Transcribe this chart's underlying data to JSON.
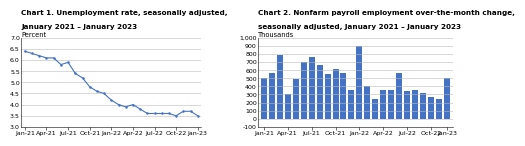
{
  "chart1_title_line1": "Chart 1. Unemployment rate, seasonally adjusted,",
  "chart1_title_line2": "January 2021 – January 2023",
  "chart1_unit": "Percent",
  "chart1_ylim": [
    3.0,
    7.0
  ],
  "chart1_yticks": [
    3.0,
    3.5,
    4.0,
    4.5,
    5.0,
    5.5,
    6.0,
    6.5,
    7.0
  ],
  "chart1_data": [
    6.4,
    6.3,
    6.2,
    6.1,
    6.1,
    5.8,
    5.9,
    5.4,
    5.2,
    4.8,
    4.6,
    4.5,
    4.2,
    4.0,
    3.9,
    4.0,
    3.8,
    3.6,
    3.6,
    3.6,
    3.6,
    3.5,
    3.7,
    3.7,
    3.5
  ],
  "chart1_line_color": "#4472C4",
  "chart2_title_line1": "Chart 2. Nonfarm payroll employment over-the-month change,",
  "chart2_title_line2": "seasonally adjusted, January 2021 – January 2023",
  "chart2_unit": "Thousands",
  "chart2_ylim": [
    -100,
    1000
  ],
  "chart2_yticks": [
    -100,
    0,
    100,
    200,
    300,
    400,
    500,
    600,
    700,
    800,
    900,
    1000
  ],
  "chart2_data": [
    500,
    560,
    785,
    300,
    490,
    700,
    760,
    665,
    550,
    620,
    560,
    360,
    895,
    410,
    250,
    360,
    360,
    560,
    345,
    350,
    315,
    270,
    245,
    510
  ],
  "chart2_bar_color": "#4472C4",
  "xtick_labels": [
    "Jan-21",
    "Apr-21",
    "Jul-21",
    "Oct-21",
    "Jan-22",
    "Apr-22",
    "Jul-22",
    "Oct-22",
    "Jan-23"
  ],
  "xtick_positions_25": [
    0,
    3,
    6,
    9,
    12,
    15,
    18,
    21,
    24
  ],
  "xtick_positions_24": [
    0,
    3,
    6,
    9,
    12,
    15,
    18,
    21,
    23
  ],
  "title_fontsize": 5.2,
  "unit_fontsize": 4.8,
  "tick_fontsize": 4.5,
  "background_color": "#ffffff",
  "grid_color": "#bbbbbb"
}
